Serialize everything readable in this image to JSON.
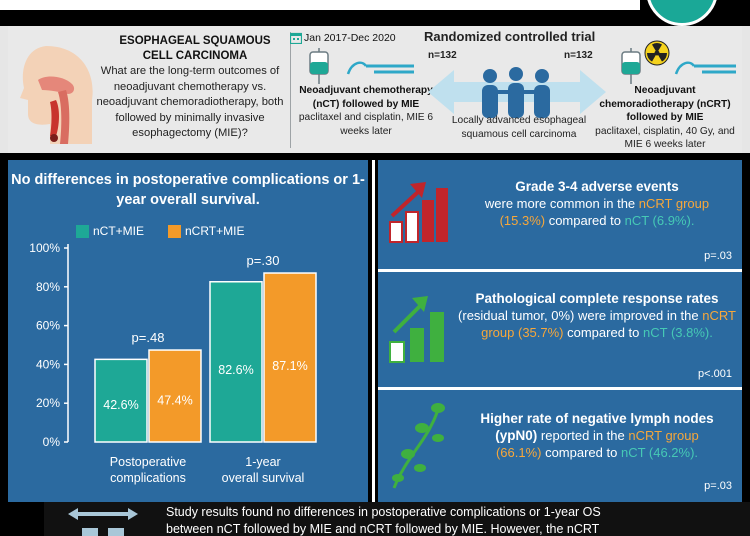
{
  "header": {
    "title": "ESOPHAGEAL SQUAMOUS CELL CARCINOMA",
    "question": "What are the long-term outcomes of neoadjuvant chemotherapy vs. neoadjuvant chemoradiotherapy, both followed by minimally invasive esophagectomy (MIE)?",
    "date_range": "Jan 2017-Dec 2020",
    "trial_type": "Randomized controlled trial",
    "n_left": "n=132",
    "n_right": "n=132",
    "arm_left_title": "Neoadjuvant chemotherapy (nCT) followed by MIE",
    "arm_left_detail": "paclitaxel and cisplatin, MIE 6 weeks later",
    "arm_right_title": "Neoadjuvant chemoradiotherapy (nCRT) followed by MIE",
    "arm_right_detail": "paclitaxel, cisplatin, 40 Gy, and MIE 6 weeks later",
    "population": "Locally advanced esophageal squamous cell carcinoma"
  },
  "chart_panel": {
    "title": "No differences in postoperative complications or 1-year overall survival."
  },
  "chart_data": {
    "type": "bar",
    "categories": [
      "Postoperative complications",
      "1-year overall survival"
    ],
    "category_lines": [
      [
        "Postoperative",
        "complications"
      ],
      [
        "1-year",
        "overall survival"
      ]
    ],
    "series": [
      {
        "name": "nCT+MIE",
        "values": [
          42.6,
          82.6
        ],
        "labels": [
          "42.6%",
          "82.6%"
        ],
        "color": "#1ea896"
      },
      {
        "name": "nCRT+MIE",
        "values": [
          47.4,
          87.1
        ],
        "labels": [
          "47.4%",
          "87.1%"
        ],
        "color": "#f39a29"
      }
    ],
    "p_values": [
      "p=.48",
      "p=.30"
    ],
    "yticks": [
      "0%",
      "20%",
      "40%",
      "60%",
      "80%",
      "100%"
    ],
    "ylim": [
      0,
      100
    ],
    "grid": false,
    "legend_position": "top"
  },
  "cards": [
    {
      "title": "Grade 3-4 adverse events",
      "line1": "were more common in the ",
      "group": "nCRT group",
      "value_crt": "(15.3%)",
      "mid": " compared to ",
      "value_ct": "nCT (6.9%).",
      "p": "p=.03",
      "icon": "bar-chart-up-icon"
    },
    {
      "title": "Pathological complete response rates",
      "line1": "(residual tumor, 0%) were improved in the ",
      "group": "nCRT group (35.7%)",
      "mid": " compared to ",
      "value_ct": "nCT (3.8%).",
      "p": "p<.001",
      "icon": "bar-chart-growth-icon"
    },
    {
      "title": "Higher rate of negative lymph nodes (ypN0)",
      "line1": " reported in the ",
      "group": "nCRT group",
      "value_crt": "(66.1%)",
      "mid": " compared to ",
      "value_ct": "nCT (46.2%).",
      "p": "p=.03",
      "icon": "lymph-node-icon"
    }
  ],
  "summary": {
    "line1": "Study results found no differences in postoperative complications or 1-year OS",
    "line2": "between nCT followed by MIE and nCRT followed by MIE. However, the nCRT"
  },
  "colors": {
    "panel_blue": "#2b6aa0",
    "teal": "#1ea896",
    "orange": "#f39a29",
    "header_bg": "#e9e9e9"
  }
}
